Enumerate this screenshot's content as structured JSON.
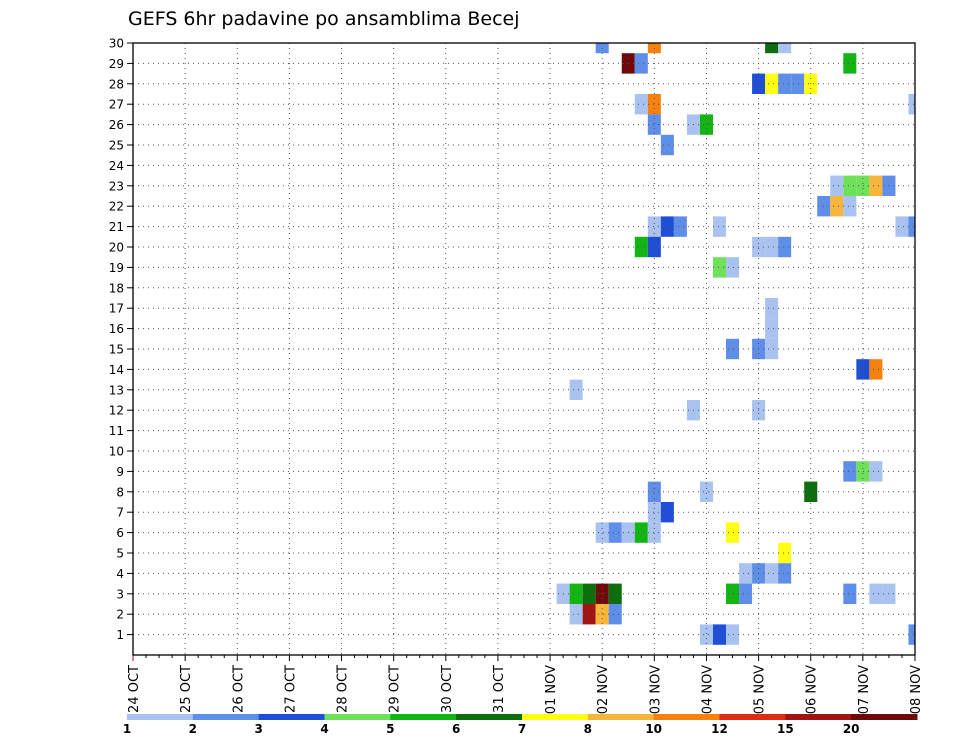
{
  "chart_data": {
    "type": "heatmap",
    "title": "GEFS 6hr padavine po ansamblima Becej",
    "xlabel": "",
    "ylabel": "",
    "x_tick_labels": [
      "24 OCT",
      "25 OCT",
      "26 OCT",
      "27 OCT",
      "28 OCT",
      "29 OCT",
      "30 OCT",
      "31 OCT",
      "01 NOV",
      "02 NOV",
      "03 NOV",
      "04 NOV",
      "05 NOV",
      "06 NOV",
      "07 NOV",
      "08 NOV"
    ],
    "y_tick_labels": [
      "1",
      "2",
      "3",
      "4",
      "5",
      "6",
      "7",
      "8",
      "9",
      "10",
      "11",
      "12",
      "13",
      "14",
      "15",
      "16",
      "17",
      "18",
      "19",
      "20",
      "21",
      "22",
      "23",
      "24",
      "25",
      "26",
      "27",
      "28",
      "29",
      "30"
    ],
    "y_range": [
      0,
      30
    ],
    "x_range_days": [
      0,
      15
    ],
    "grid": true,
    "value_unit_note": "",
    "colorbar": {
      "bounds": [
        "1",
        "2",
        "3",
        "4",
        "5",
        "6",
        "7",
        "8",
        "10",
        "12",
        "15",
        "20"
      ],
      "colors": [
        "#a9c2f0",
        "#5f8ee8",
        "#1e4fd6",
        "#6fe05a",
        "#14b414",
        "#0c6e0c",
        "#ffff14",
        "#f7b53c",
        "#f5820f",
        "#dc2c14",
        "#a01414",
        "#6e0a0a"
      ]
    },
    "cells": [
      {
        "member": 30,
        "day": 9.0,
        "value": 2
      },
      {
        "member": 30,
        "day": 10.0,
        "value": 10
      },
      {
        "member": 30,
        "day": 12.25,
        "value": 6
      },
      {
        "member": 30,
        "day": 12.5,
        "value": 1
      },
      {
        "member": 29,
        "day": 9.5,
        "value": 20
      },
      {
        "member": 29,
        "day": 9.75,
        "value": 2
      },
      {
        "member": 29,
        "day": 13.75,
        "value": 5
      },
      {
        "member": 28,
        "day": 12.0,
        "value": 3
      },
      {
        "member": 28,
        "day": 12.25,
        "value": 7
      },
      {
        "member": 28,
        "day": 12.5,
        "value": 2
      },
      {
        "member": 28,
        "day": 12.75,
        "value": 2
      },
      {
        "member": 28,
        "day": 13.0,
        "value": 7
      },
      {
        "member": 27,
        "day": 9.75,
        "value": 1
      },
      {
        "member": 27,
        "day": 10.0,
        "value": 10
      },
      {
        "member": 27,
        "day": 15.0,
        "value": 1
      },
      {
        "member": 26,
        "day": 10.0,
        "value": 2
      },
      {
        "member": 26,
        "day": 10.75,
        "value": 1
      },
      {
        "member": 26,
        "day": 11.0,
        "value": 5
      },
      {
        "member": 25,
        "day": 10.25,
        "value": 2
      },
      {
        "member": 23,
        "day": 13.5,
        "value": 1
      },
      {
        "member": 23,
        "day": 13.75,
        "value": 4
      },
      {
        "member": 23,
        "day": 14.0,
        "value": 4
      },
      {
        "member": 23,
        "day": 14.25,
        "value": 8
      },
      {
        "member": 23,
        "day": 14.5,
        "value": 2
      },
      {
        "member": 22,
        "day": 13.25,
        "value": 2
      },
      {
        "member": 22,
        "day": 13.5,
        "value": 8
      },
      {
        "member": 22,
        "day": 13.75,
        "value": 1
      },
      {
        "member": 21,
        "day": 10.0,
        "value": 1
      },
      {
        "member": 21,
        "day": 10.25,
        "value": 3
      },
      {
        "member": 21,
        "day": 10.5,
        "value": 2
      },
      {
        "member": 21,
        "day": 11.25,
        "value": 1
      },
      {
        "member": 21,
        "day": 14.75,
        "value": 1
      },
      {
        "member": 21,
        "day": 15.0,
        "value": 2
      },
      {
        "member": 20,
        "day": 9.75,
        "value": 5
      },
      {
        "member": 20,
        "day": 10.0,
        "value": 3
      },
      {
        "member": 20,
        "day": 12.0,
        "value": 1
      },
      {
        "member": 20,
        "day": 12.25,
        "value": 1
      },
      {
        "member": 20,
        "day": 12.5,
        "value": 2
      },
      {
        "member": 19,
        "day": 11.25,
        "value": 4
      },
      {
        "member": 19,
        "day": 11.5,
        "value": 1
      },
      {
        "member": 17,
        "day": 12.25,
        "value": 1
      },
      {
        "member": 16,
        "day": 12.25,
        "value": 1
      },
      {
        "member": 15,
        "day": 11.5,
        "value": 2
      },
      {
        "member": 15,
        "day": 12.0,
        "value": 2
      },
      {
        "member": 15,
        "day": 12.25,
        "value": 1
      },
      {
        "member": 14,
        "day": 14.0,
        "value": 3
      },
      {
        "member": 14,
        "day": 14.25,
        "value": 10
      },
      {
        "member": 13,
        "day": 8.5,
        "value": 1
      },
      {
        "member": 12,
        "day": 10.75,
        "value": 1
      },
      {
        "member": 12,
        "day": 12.0,
        "value": 1
      },
      {
        "member": 9,
        "day": 13.75,
        "value": 2
      },
      {
        "member": 9,
        "day": 14.0,
        "value": 4
      },
      {
        "member": 9,
        "day": 14.25,
        "value": 1
      },
      {
        "member": 8,
        "day": 10.0,
        "value": 2
      },
      {
        "member": 8,
        "day": 11.0,
        "value": 1
      },
      {
        "member": 8,
        "day": 13.0,
        "value": 6
      },
      {
        "member": 7,
        "day": 10.0,
        "value": 1
      },
      {
        "member": 7,
        "day": 10.25,
        "value": 3
      },
      {
        "member": 6,
        "day": 9.0,
        "value": 1
      },
      {
        "member": 6,
        "day": 9.25,
        "value": 2
      },
      {
        "member": 6,
        "day": 9.5,
        "value": 1
      },
      {
        "member": 6,
        "day": 9.75,
        "value": 5
      },
      {
        "member": 6,
        "day": 10.0,
        "value": 1
      },
      {
        "member": 6,
        "day": 11.5,
        "value": 7
      },
      {
        "member": 5,
        "day": 12.5,
        "value": 7
      },
      {
        "member": 4,
        "day": 11.75,
        "value": 1
      },
      {
        "member": 4,
        "day": 12.0,
        "value": 2
      },
      {
        "member": 4,
        "day": 12.25,
        "value": 1
      },
      {
        "member": 4,
        "day": 12.5,
        "value": 2
      },
      {
        "member": 3,
        "day": 8.25,
        "value": 1
      },
      {
        "member": 3,
        "day": 8.5,
        "value": 5
      },
      {
        "member": 3,
        "day": 8.75,
        "value": 6
      },
      {
        "member": 3,
        "day": 9.0,
        "value": 20
      },
      {
        "member": 3,
        "day": 9.25,
        "value": 6
      },
      {
        "member": 3,
        "day": 11.5,
        "value": 5
      },
      {
        "member": 3,
        "day": 11.75,
        "value": 2
      },
      {
        "member": 3,
        "day": 13.75,
        "value": 2
      },
      {
        "member": 3,
        "day": 14.25,
        "value": 1
      },
      {
        "member": 3,
        "day": 14.5,
        "value": 1
      },
      {
        "member": 2,
        "day": 8.5,
        "value": 1
      },
      {
        "member": 2,
        "day": 8.75,
        "value": 15
      },
      {
        "member": 2,
        "day": 9.0,
        "value": 8
      },
      {
        "member": 2,
        "day": 9.25,
        "value": 2
      },
      {
        "member": 1,
        "day": 11.0,
        "value": 1
      },
      {
        "member": 1,
        "day": 11.25,
        "value": 3
      },
      {
        "member": 1,
        "day": 11.5,
        "value": 1
      },
      {
        "member": 1,
        "day": 15.0,
        "value": 2
      }
    ]
  }
}
